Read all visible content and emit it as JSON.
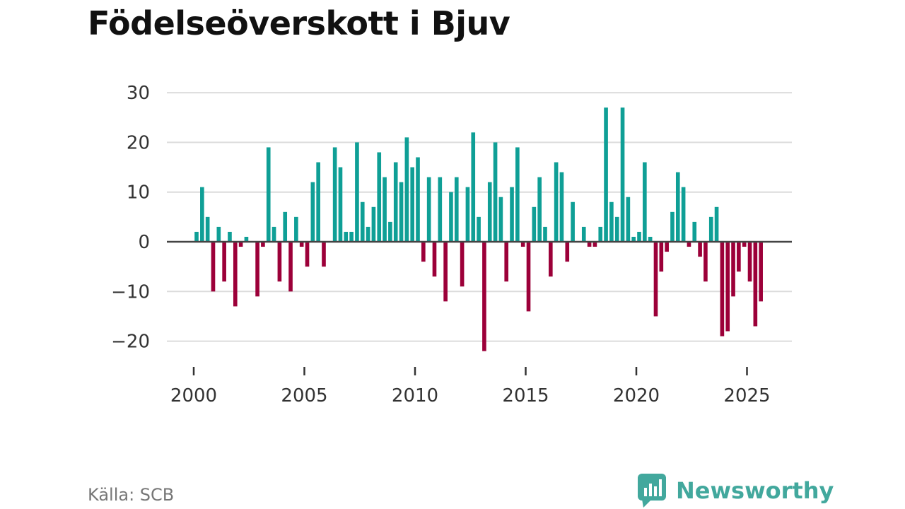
{
  "title": "Födelseöverskott i Bjuv",
  "source": "Källa: SCB",
  "brand": {
    "name": "Newsworthy",
    "logo_icon": "newsworthy-chart-bubble-icon",
    "color": "#42a89d"
  },
  "chart_data": {
    "type": "bar",
    "title": "Födelseöverskott i Bjuv",
    "frequency": "quarterly",
    "start": "2000-Q1",
    "values": [
      2,
      11,
      5,
      -10,
      3,
      -8,
      2,
      -13,
      -1,
      1,
      0,
      -11,
      -1,
      19,
      3,
      -8,
      6,
      -10,
      5,
      -1,
      -5,
      12,
      16,
      -5,
      0,
      19,
      15,
      2,
      2,
      20,
      8,
      3,
      7,
      18,
      13,
      4,
      16,
      12,
      21,
      15,
      17,
      -4,
      13,
      -7,
      13,
      -12,
      10,
      13,
      -9,
      11,
      22,
      5,
      -22,
      12,
      20,
      9,
      -8,
      11,
      19,
      -1,
      -14,
      7,
      13,
      3,
      -7,
      16,
      14,
      -4,
      8,
      0,
      3,
      -1,
      -1,
      3,
      27,
      8,
      5,
      27,
      9,
      1,
      2,
      16,
      1,
      -15,
      -6,
      -2,
      6,
      14,
      11,
      -1,
      4,
      -3,
      -8,
      5,
      7,
      -19,
      -18,
      -11,
      -6,
      -1,
      -8,
      -17,
      -12
    ],
    "x_ticks": [
      "2000",
      "2005",
      "2010",
      "2015",
      "2020",
      "2025"
    ],
    "y_ticks": [
      30,
      20,
      10,
      0,
      -10,
      -20
    ],
    "y_tick_labels": [
      "30",
      "20",
      "10",
      "0",
      "−10",
      "−20"
    ],
    "ylim": [
      -23,
      30
    ],
    "xlim": [
      "2000-Q1",
      "2026-Q1"
    ],
    "grid": true,
    "legend": "none",
    "colors": {
      "positive": "#0f9f96",
      "negative": "#9c0039",
      "grid": "#dcdcdc",
      "zero_line": "#444444",
      "axis_tick": "#333333"
    }
  }
}
